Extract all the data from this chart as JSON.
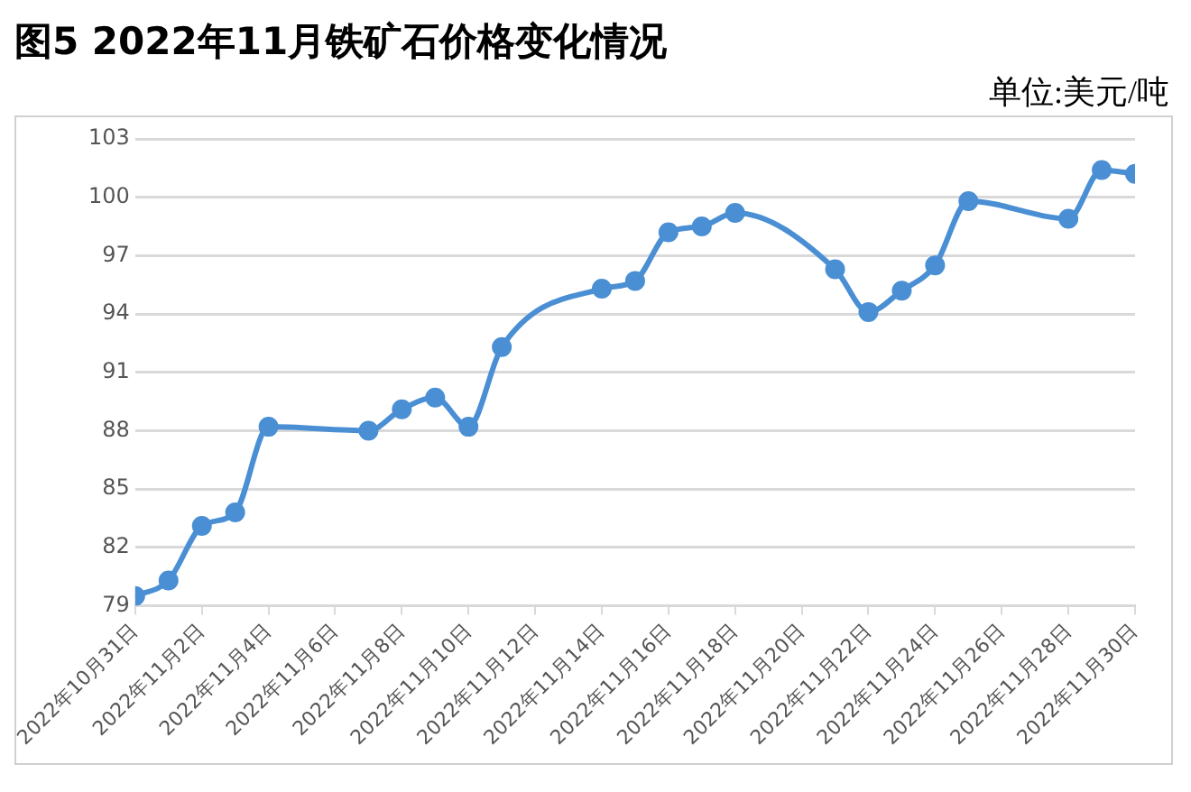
{
  "chart_data": {
    "type": "line",
    "title": "图5 2022年11月铁矿石价格变化情况",
    "annotations": [
      "单位:美元/吨"
    ],
    "x": [
      "2022-10-31",
      "2022-11-01",
      "2022-11-02",
      "2022-11-03",
      "2022-11-04",
      "2022-11-07",
      "2022-11-08",
      "2022-11-09",
      "2022-11-10",
      "2022-11-11",
      "2022-11-14",
      "2022-11-15",
      "2022-11-16",
      "2022-11-17",
      "2022-11-18",
      "2022-11-21",
      "2022-11-22",
      "2022-11-23",
      "2022-11-24",
      "2022-11-25",
      "2022-11-28",
      "2022-11-29",
      "2022-11-30"
    ],
    "series": [
      {
        "color": "#4a8fd4",
        "values": [
          79.5,
          80.3,
          83.1,
          83.8,
          88.2,
          88.0,
          89.1,
          89.7,
          88.2,
          92.3,
          95.3,
          95.7,
          98.2,
          98.5,
          99.2,
          96.3,
          94.1,
          95.2,
          96.5,
          99.8,
          98.9,
          101.4,
          101.2
        ]
      }
    ],
    "xlim": [
      "2022-10-31",
      "2022-11-30"
    ],
    "xticks": [
      {
        "value": "2022-10-31",
        "label": "2022年10月31日"
      },
      {
        "value": "2022-11-02",
        "label": "2022年11月2日"
      },
      {
        "value": "2022-11-04",
        "label": "2022年11月4日"
      },
      {
        "value": "2022-11-06",
        "label": "2022年11月6日"
      },
      {
        "value": "2022-11-08",
        "label": "2022年11月8日"
      },
      {
        "value": "2022-11-10",
        "label": "2022年11月10日"
      },
      {
        "value": "2022-11-12",
        "label": "2022年11月12日"
      },
      {
        "value": "2022-11-14",
        "label": "2022年11月14日"
      },
      {
        "value": "2022-11-16",
        "label": "2022年11月16日"
      },
      {
        "value": "2022-11-18",
        "label": "2022年11月18日"
      },
      {
        "value": "2022-11-20",
        "label": "2022年11月20日"
      },
      {
        "value": "2022-11-22",
        "label": "2022年11月22日"
      },
      {
        "value": "2022-11-24",
        "label": "2022年11月24日"
      },
      {
        "value": "2022-11-26",
        "label": "2022年11月26日"
      },
      {
        "value": "2022-11-28",
        "label": "2022年11月28日"
      },
      {
        "value": "2022-11-30",
        "label": "2022年11月30日"
      }
    ],
    "ylim": [
      79,
      103
    ],
    "yticks": [
      79,
      82,
      85,
      88,
      91,
      94,
      97,
      100,
      103
    ],
    "grid": "y",
    "marker": "circle",
    "line_style": "solid",
    "legend": false
  }
}
